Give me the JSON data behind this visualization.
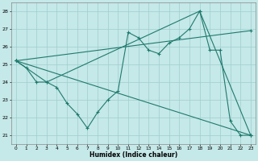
{
  "xlabel": "Humidex (Indice chaleur)",
  "bg_color": "#c5e8e8",
  "grid_color": "#9fcece",
  "line_color": "#1e7a6e",
  "xlim": [
    -0.5,
    23.5
  ],
  "ylim": [
    20.5,
    28.5
  ],
  "xticks": [
    0,
    1,
    2,
    3,
    4,
    5,
    6,
    7,
    8,
    9,
    10,
    11,
    12,
    13,
    14,
    15,
    16,
    17,
    18,
    19,
    20,
    21,
    22,
    23
  ],
  "yticks": [
    21,
    22,
    23,
    24,
    25,
    26,
    27,
    28
  ],
  "series1_x": [
    0,
    1,
    2,
    3,
    4,
    5,
    6,
    7,
    8,
    9,
    10,
    11,
    12,
    13,
    14,
    15,
    16,
    17,
    18,
    19,
    20,
    21,
    22,
    23
  ],
  "series1_y": [
    25.2,
    24.8,
    24.0,
    24.0,
    23.7,
    22.8,
    22.2,
    21.4,
    22.3,
    23.0,
    23.5,
    26.8,
    26.5,
    25.8,
    25.6,
    26.2,
    26.5,
    27.0,
    28.0,
    25.8,
    25.8,
    21.8,
    21.0,
    21.0
  ],
  "series2_x": [
    0,
    23
  ],
  "series2_y": [
    25.2,
    21.0
  ],
  "series3_x": [
    0,
    3,
    18,
    23
  ],
  "series3_y": [
    25.2,
    24.0,
    28.0,
    21.0
  ],
  "series4_x": [
    0,
    23
  ],
  "series4_y": [
    25.2,
    26.9
  ]
}
